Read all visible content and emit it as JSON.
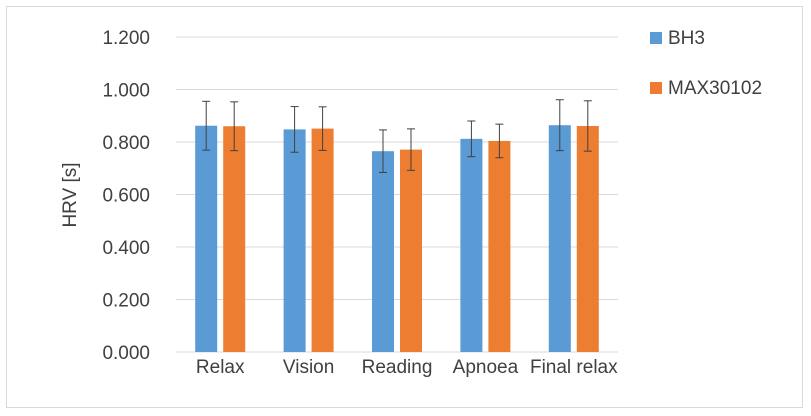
{
  "chart_data": {
    "type": "bar",
    "title": "",
    "xlabel": "",
    "ylabel": "HRV [s]",
    "ylim": [
      0,
      1.2
    ],
    "yticks": [
      "0.000",
      "0.200",
      "0.400",
      "0.600",
      "0.800",
      "1.000",
      "1.200"
    ],
    "categories": [
      "Relax",
      "Vision",
      "Reading",
      "Apnoea",
      "Final relax"
    ],
    "series": [
      {
        "name": "BH3",
        "color": "#5b9bd5",
        "values": [
          0.862,
          0.848,
          0.765,
          0.812,
          0.864
        ],
        "errors": [
          0.093,
          0.087,
          0.081,
          0.068,
          0.097
        ]
      },
      {
        "name": "MAX30102",
        "color": "#ed7d31",
        "values": [
          0.86,
          0.851,
          0.771,
          0.804,
          0.861
        ],
        "errors": [
          0.093,
          0.083,
          0.079,
          0.064,
          0.096
        ]
      }
    ],
    "grid": true,
    "legend": "right",
    "colors": {
      "grid": "#d9d9d9",
      "error_bar": "#404040",
      "text": "#404040"
    }
  }
}
